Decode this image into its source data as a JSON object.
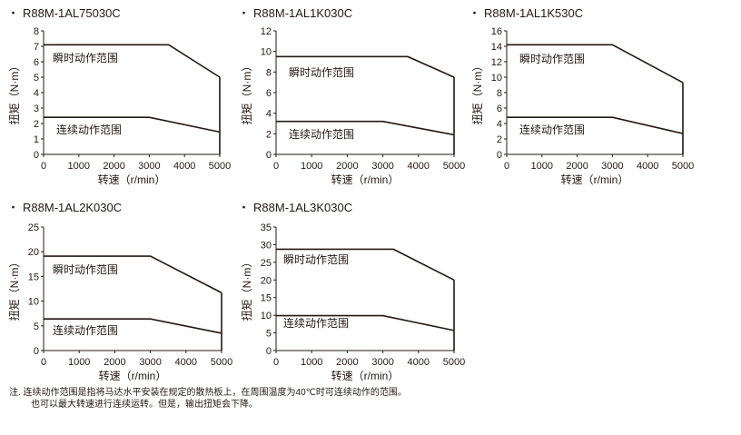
{
  "chart_data": [
    {
      "type": "line",
      "title": "R88M-1AL75030C",
      "xlabel": "转速（r/min）",
      "ylabel": "扭矩（N·m）",
      "xlim": [
        0,
        5000
      ],
      "ylim": [
        0,
        8
      ],
      "xticks": [
        0,
        1000,
        2000,
        3000,
        4000,
        5000
      ],
      "yticks": [
        0,
        1,
        2,
        3,
        4,
        5,
        6,
        7,
        8
      ],
      "series": [
        {
          "name": "瞬时动作范围",
          "x": [
            0,
            3550,
            5000
          ],
          "y": [
            7.1,
            7.1,
            5.0
          ]
        },
        {
          "name": "连续动作范围",
          "x": [
            0,
            3000,
            5000
          ],
          "y": [
            2.4,
            2.4,
            1.45
          ]
        }
      ]
    },
    {
      "type": "line",
      "title": "R88M-1AL1K030C",
      "xlabel": "转速（r/min）",
      "ylabel": "扭矩（N·m）",
      "xlim": [
        0,
        5000
      ],
      "ylim": [
        0,
        12
      ],
      "xticks": [
        0,
        1000,
        2000,
        3000,
        4000,
        5000
      ],
      "yticks": [
        0,
        2,
        4,
        6,
        8,
        10,
        12
      ],
      "series": [
        {
          "name": "瞬时动作范围",
          "x": [
            0,
            3700,
            5000
          ],
          "y": [
            9.5,
            9.5,
            7.5
          ]
        },
        {
          "name": "连续动作范围",
          "x": [
            0,
            3000,
            5000
          ],
          "y": [
            3.2,
            3.2,
            1.9
          ]
        }
      ]
    },
    {
      "type": "line",
      "title": "R88M-1AL1K530C",
      "xlabel": "转速（r/min）",
      "ylabel": "扭矩（N·m）",
      "xlim": [
        0,
        5000
      ],
      "ylim": [
        0,
        16
      ],
      "xticks": [
        0,
        1000,
        2000,
        3000,
        4000,
        5000
      ],
      "yticks": [
        0,
        2,
        4,
        6,
        8,
        10,
        12,
        14,
        16
      ],
      "series": [
        {
          "name": "瞬时动作范围",
          "x": [
            0,
            3000,
            5000
          ],
          "y": [
            14.2,
            14.2,
            9.3
          ]
        },
        {
          "name": "连续动作范围",
          "x": [
            0,
            3000,
            5000
          ],
          "y": [
            4.8,
            4.8,
            2.7
          ]
        }
      ]
    },
    {
      "type": "line",
      "title": "R88M-1AL2K030C",
      "xlabel": "转速（r/min）",
      "ylabel": "扭矩（N·m）",
      "xlim": [
        0,
        5000
      ],
      "ylim": [
        0,
        25
      ],
      "xticks": [
        0,
        1000,
        2000,
        3000,
        4000,
        5000
      ],
      "yticks": [
        0,
        5,
        10,
        15,
        20,
        25
      ],
      "series": [
        {
          "name": "瞬时动作范围",
          "x": [
            0,
            3000,
            5000
          ],
          "y": [
            19.1,
            19.1,
            11.7
          ]
        },
        {
          "name": "连续动作范围",
          "x": [
            0,
            3000,
            5000
          ],
          "y": [
            6.4,
            6.4,
            3.5
          ]
        }
      ]
    },
    {
      "type": "line",
      "title": "R88M-1AL3K030C",
      "xlabel": "转速（r/min）",
      "ylabel": "扭矩（N·m）",
      "xlim": [
        0,
        5000
      ],
      "ylim": [
        0,
        35
      ],
      "xticks": [
        0,
        1000,
        2000,
        3000,
        4000,
        5000
      ],
      "yticks": [
        0,
        5,
        10,
        15,
        20,
        25,
        30,
        35
      ],
      "series": [
        {
          "name": "瞬时动作范围",
          "x": [
            0,
            3300,
            5000
          ],
          "y": [
            28.7,
            28.7,
            20.0
          ]
        },
        {
          "name": "连续动作范围",
          "x": [
            0,
            3000,
            5000
          ],
          "y": [
            9.9,
            9.9,
            5.7
          ]
        }
      ]
    }
  ],
  "panel_bullet": "・",
  "note": {
    "line1": "注. 连续动作范围是指将马达水平安装在规定的散热板上，在周围温度为40℃时可连续动作的范围。",
    "line2": "也可以最大转速进行连续运转。但是，输出扭矩会下降。"
  }
}
